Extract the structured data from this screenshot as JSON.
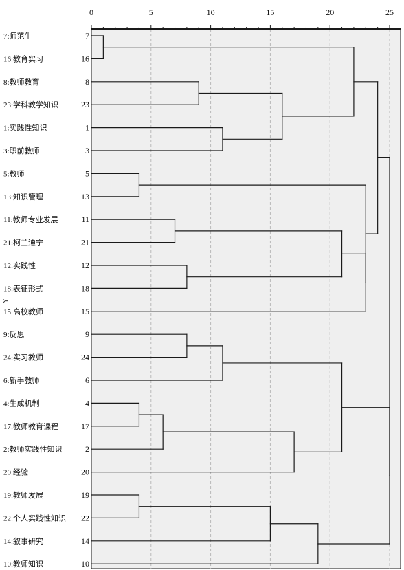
{
  "chart_data": {
    "type": "dendrogram",
    "title": "",
    "xlabel": "",
    "ylabel": "Y",
    "xlim": [
      0,
      25
    ],
    "x_ticks": [
      "0",
      "5",
      "10",
      "15",
      "20",
      "25"
    ],
    "grid": true,
    "colors": {
      "plot_bg": "#efefef",
      "line": "#1a1a1a",
      "grid": "#b9b9b9"
    },
    "leaves": [
      {
        "id": 7,
        "label": "7:师范生"
      },
      {
        "id": 16,
        "label": "16:教育实习"
      },
      {
        "id": 8,
        "label": "8:教师教育"
      },
      {
        "id": 23,
        "label": "23:学科教学知识"
      },
      {
        "id": 1,
        "label": "1:实践性知识"
      },
      {
        "id": 3,
        "label": "3:职前教师"
      },
      {
        "id": 5,
        "label": "5:教师"
      },
      {
        "id": 13,
        "label": "13:知识管理"
      },
      {
        "id": 11,
        "label": "11:教师专业发展"
      },
      {
        "id": 21,
        "label": "21:柯兰迪宁"
      },
      {
        "id": 12,
        "label": "12:实践性"
      },
      {
        "id": 18,
        "label": "18:表征形式"
      },
      {
        "id": 15,
        "label": "15:高校教师"
      },
      {
        "id": 9,
        "label": "9:反思"
      },
      {
        "id": 24,
        "label": "24:实习教师"
      },
      {
        "id": 6,
        "label": "6:新手教师"
      },
      {
        "id": 4,
        "label": "4:生成机制"
      },
      {
        "id": 17,
        "label": "17:教师教育课程"
      },
      {
        "id": 2,
        "label": "2:教师实践性知识"
      },
      {
        "id": 20,
        "label": "20:经验"
      },
      {
        "id": 19,
        "label": "19:教师发展"
      },
      {
        "id": 22,
        "label": "22:个人实践性知识"
      },
      {
        "id": 14,
        "label": "14:叙事研究"
      },
      {
        "id": 10,
        "label": "10:教师知识"
      }
    ],
    "merges": [
      {
        "id": "A",
        "left": 7,
        "right": 16,
        "distance": 1
      },
      {
        "id": "B",
        "left": 8,
        "right": 23,
        "distance": 9
      },
      {
        "id": "C",
        "left": 1,
        "right": 3,
        "distance": 11
      },
      {
        "id": "D",
        "left": "B",
        "right": "C",
        "distance": 16
      },
      {
        "id": "E",
        "left": "A",
        "right": "D",
        "distance": 22
      },
      {
        "id": "F",
        "left": 5,
        "right": 13,
        "distance": 4
      },
      {
        "id": "G",
        "left": 11,
        "right": 21,
        "distance": 7
      },
      {
        "id": "H",
        "left": 12,
        "right": 18,
        "distance": 8
      },
      {
        "id": "I",
        "left": "G",
        "right": "H",
        "distance": 21
      },
      {
        "id": "J",
        "left": "I",
        "right": 15,
        "distance": 23
      },
      {
        "id": "K",
        "left": "F",
        "right": "J",
        "distance": 23
      },
      {
        "id": "L",
        "left": "E",
        "right": "K",
        "distance": 24
      },
      {
        "id": "M",
        "left": 9,
        "right": 24,
        "distance": 8
      },
      {
        "id": "N",
        "left": "M",
        "right": 6,
        "distance": 11
      },
      {
        "id": "O",
        "left": 4,
        "right": 17,
        "distance": 4
      },
      {
        "id": "P",
        "left": "O",
        "right": 2,
        "distance": 6
      },
      {
        "id": "Q",
        "left": "P",
        "right": 20,
        "distance": 17
      },
      {
        "id": "R",
        "left": "N",
        "right": "Q",
        "distance": 21
      },
      {
        "id": "S",
        "left": 19,
        "right": 22,
        "distance": 4
      },
      {
        "id": "T",
        "left": "S",
        "right": 14,
        "distance": 15
      },
      {
        "id": "U",
        "left": "T",
        "right": 10,
        "distance": 19
      },
      {
        "id": "V",
        "left": "R",
        "right": "U",
        "distance": 25
      },
      {
        "id": "W",
        "left": "L",
        "right": "V",
        "distance": 25
      }
    ]
  }
}
